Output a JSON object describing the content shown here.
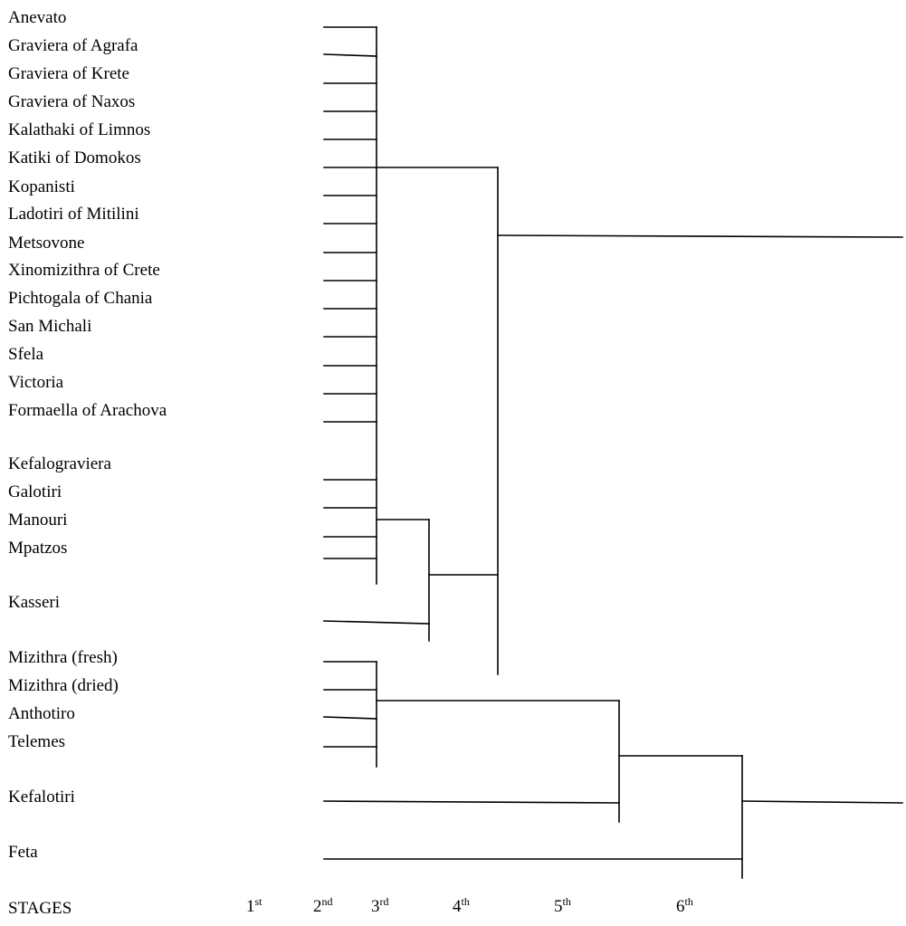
{
  "cheeses": [
    "Anevato",
    "Graviera of Agrafa",
    "Graviera of Krete",
    "Graviera of Naxos",
    "Kalathaki of Limnos",
    "Katiki of Domokos",
    "Kopanisti",
    "Ladotiri of Mitilini",
    "Metsovone",
    "Xinomizithra of Crete",
    "Pichtogala of Chania",
    "San Michali",
    "Sfela",
    "Victoria",
    "Formaella of Arachova",
    "Kefalograviera",
    "Galotiri",
    "Manouri",
    "Mpatzos",
    "Kasseri",
    "Mizithra (fresh)",
    "Mizithra (dried)",
    "Anthotiro",
    "Telemes",
    "Kefalotiri",
    "Feta"
  ],
  "stages": {
    "label": "STAGES",
    "items": [
      {
        "num": "1",
        "suffix": "st"
      },
      {
        "num": "2",
        "suffix": "nd"
      },
      {
        "num": "3",
        "suffix": "rd"
      },
      {
        "num": "4",
        "suffix": "th"
      },
      {
        "num": "5",
        "suffix": "th"
      },
      {
        "num": "6",
        "suffix": "th"
      }
    ]
  }
}
